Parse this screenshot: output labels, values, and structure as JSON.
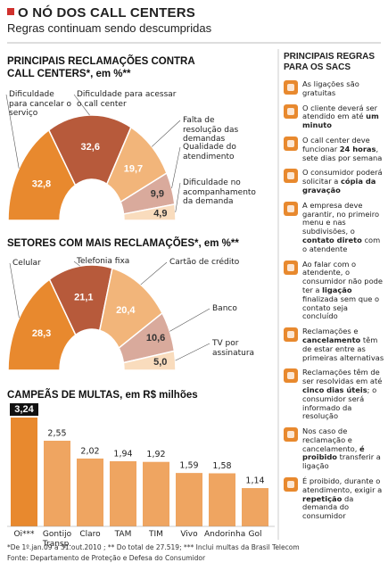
{
  "header": {
    "title": "O NÓ DOS CALL CENTERS",
    "subtitle": "Regras continuam sendo descumpridas"
  },
  "chart_data": [
    {
      "type": "half-donut",
      "title": "PRINCIPAIS RECLAMAÇÕES CONTRA CALL CENTERS*, em %**",
      "categories": [
        "Dificuldade para cancelar o serviço",
        "Dificuldade para acessar o call center",
        "Falta de resolução das demandas",
        "Qualidade do atendimento",
        "Dificuldade no acompanhamento da demanda"
      ],
      "values": [
        32.8,
        32.6,
        19.7,
        9.9,
        4.9
      ],
      "value_labels": [
        "32,8",
        "32,6",
        "19,7",
        "9,9",
        "4,9"
      ],
      "colors": [
        "#e8892e",
        "#b75a3b",
        "#f2b57a",
        "#d9aa9c",
        "#f9dcbd"
      ]
    },
    {
      "type": "half-donut",
      "title": "SETORES COM MAIS RECLAMAÇÕES*, em %**",
      "categories": [
        "Celular",
        "Telefonia fixa",
        "Cartão de crédito",
        "Banco",
        "TV por assinatura"
      ],
      "values": [
        28.3,
        21.1,
        20.4,
        10.6,
        5.0
      ],
      "value_labels": [
        "28,3",
        "21,1",
        "20,4",
        "10,6",
        "5,0"
      ],
      "colors": [
        "#e8892e",
        "#b75a3b",
        "#f2b57a",
        "#d9aa9c",
        "#f9dcbd"
      ]
    },
    {
      "type": "bar",
      "title": "CAMPEÃS DE MULTAS, em R$ milhões",
      "categories": [
        "Oi***",
        "Gontijo Transp.",
        "Claro",
        "TAM",
        "TIM",
        "Vivo",
        "Andorinha",
        "Gol"
      ],
      "values": [
        3.24,
        2.55,
        2.02,
        1.94,
        1.92,
        1.59,
        1.58,
        1.14
      ],
      "value_labels": [
        "3,24",
        "2,55",
        "2,02",
        "1,94",
        "1,92",
        "1,59",
        "1,58",
        "1,14"
      ],
      "colors": [
        "#e8892e",
        "#efa561",
        "#efa561",
        "#efa561",
        "#efa561",
        "#efa561",
        "#efa561",
        "#efa561"
      ]
    }
  ],
  "rules_panel": {
    "title": "PRINCIPAIS REGRAS PARA OS SACS",
    "rules": [
      [
        {
          "text": "As ligações são gratuitas",
          "bold": false
        }
      ],
      [
        {
          "text": "O cliente deverá ser atendido em até ",
          "bold": false
        },
        {
          "text": "um minuto",
          "bold": true
        }
      ],
      [
        {
          "text": "O call center deve funcionar ",
          "bold": false
        },
        {
          "text": "24 horas",
          "bold": true
        },
        {
          "text": ", sete dias por semana",
          "bold": false
        }
      ],
      [
        {
          "text": "O consumidor poderá solicitar a ",
          "bold": false
        },
        {
          "text": "cópia da gravação",
          "bold": true
        }
      ],
      [
        {
          "text": "A empresa deve garantir, no primeiro menu e nas subdivisões, o ",
          "bold": false
        },
        {
          "text": "contato direto",
          "bold": true
        },
        {
          "text": " com o atendente",
          "bold": false
        }
      ],
      [
        {
          "text": "Ao falar com o atendente, o consumidor não pode ter a ",
          "bold": false
        },
        {
          "text": "ligação",
          "bold": true
        },
        {
          "text": " finalizada sem que o contato seja concluído",
          "bold": false
        }
      ],
      [
        {
          "text": "Reclamações e ",
          "bold": false
        },
        {
          "text": "cancelamento",
          "bold": true
        },
        {
          "text": " têm de estar entre as primeiras alternativas",
          "bold": false
        }
      ],
      [
        {
          "text": "Reclamações têm de ser resolvidas em até ",
          "bold": false
        },
        {
          "text": "cinco dias úteis",
          "bold": true
        },
        {
          "text": "; o consumidor será informado da resolução",
          "bold": false
        }
      ],
      [
        {
          "text": "Nos caso de reclamação e cancelamento, ",
          "bold": false
        },
        {
          "text": "é proibido",
          "bold": true
        },
        {
          "text": " transferir a ligação",
          "bold": false
        }
      ],
      [
        {
          "text": "É proibido, durante o atendimento, exigir a ",
          "bold": false
        },
        {
          "text": "repetição",
          "bold": true
        },
        {
          "text": " da demanda do consumidor",
          "bold": false
        }
      ]
    ]
  },
  "footer": {
    "notes": "*De 1º.jan.09 a 31.out.2010 ; ** Do total de 27.519; *** Inclui multas da Brasil Telecom",
    "source": "Fonte: Departamento de Proteção e Defesa do Consumidor"
  }
}
